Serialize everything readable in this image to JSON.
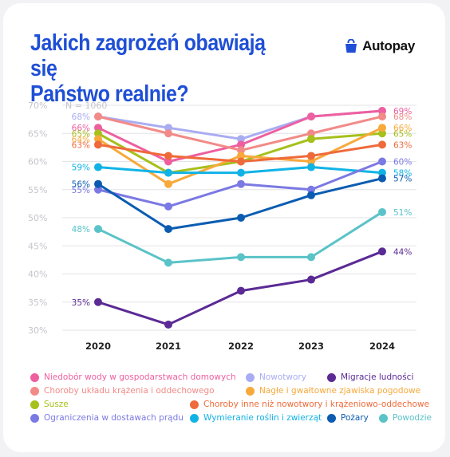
{
  "header": {
    "title_line1": "Jakich zagrożeń obawiają się",
    "title_line2": "Państwo realnie?",
    "brand": "Autopay",
    "brand_icon": "shopping-bag-icon"
  },
  "chart_data": {
    "type": "line",
    "title": "Jakich zagrożeń obawiają się Państwo realnie?",
    "annotation": "N = 1060",
    "x": [
      "2020",
      "2021",
      "2022",
      "2023",
      "2024"
    ],
    "ylim": [
      30,
      70
    ],
    "yticks": [
      "30%",
      "35%",
      "40%",
      "45%",
      "50%",
      "55%",
      "60%",
      "65%",
      "70%"
    ],
    "grid": true,
    "legend_position": "bottom",
    "series": [
      {
        "name": "Nowotwory",
        "color": "#a9acf2",
        "values": [
          68,
          66,
          64,
          68,
          69
        ],
        "label_start": "68%",
        "label_end": ""
      },
      {
        "name": "Niedobór wody w gospodarstwach domowych",
        "color": "#ee5fa0",
        "values": [
          66,
          60,
          63,
          68,
          69
        ],
        "label_start": "66%",
        "label_end": "69%"
      },
      {
        "name": "Choroby układu krążenia i oddechowego",
        "color": "#f28a88",
        "values": [
          68,
          65,
          62,
          65,
          68
        ],
        "label_start": "",
        "label_end": "68%"
      },
      {
        "name": "Susze",
        "color": "#a6c01c",
        "values": [
          65,
          58,
          60,
          64,
          65
        ],
        "label_start": "65%",
        "label_end": "65%"
      },
      {
        "name": "Nagłe i gwałtowne zjawiska pogodowe",
        "color": "#f7a93b",
        "values": [
          64,
          56,
          61,
          60,
          66
        ],
        "label_start": "64%",
        "label_end": "66%"
      },
      {
        "name": "Choroby inne niż nowotwory i krążeniowo-oddechowe",
        "color": "#ef6a3a",
        "values": [
          63,
          61,
          60,
          61,
          63
        ],
        "label_start": "63%",
        "label_end": "63%"
      },
      {
        "name": "Wymieranie roślin i zwierząt",
        "color": "#11b3e6",
        "values": [
          59,
          58,
          58,
          59,
          58
        ],
        "label_start": "59%",
        "label_end": "58%"
      },
      {
        "name": "Ograniczenia w dostawach prądu",
        "color": "#7b79e3",
        "values": [
          55,
          52,
          56,
          55,
          60
        ],
        "label_start": "55%",
        "label_end": "60%"
      },
      {
        "name": "Pożary",
        "color": "#0b5cb1",
        "values": [
          56,
          48,
          50,
          54,
          57
        ],
        "label_start": "56%",
        "label_end": "57%"
      },
      {
        "name": "Powodzie",
        "color": "#5ac3c8",
        "values": [
          48,
          42,
          43,
          43,
          51
        ],
        "label_start": "48%",
        "label_end": "51%"
      },
      {
        "name": "Migracje ludności",
        "color": "#5b2a95",
        "values": [
          35,
          31,
          37,
          39,
          44
        ],
        "label_start": "35%",
        "label_end": "44%"
      }
    ]
  },
  "legend": [
    {
      "name": "Niedobór wody w gospodarstwach domowych",
      "color": "#ee5fa0"
    },
    {
      "name": "Nowotwory",
      "color": "#a9acf2"
    },
    {
      "name": "Migracje ludności",
      "color": "#5b2a95"
    },
    {
      "name": "Choroby układu krążenia i oddechowego",
      "color": "#f28a88"
    },
    {
      "name": "Nagłe i gwałtowne zjawiska pogodowe",
      "color": "#f7a93b"
    },
    {
      "name": "Susze",
      "color": "#a6c01c"
    },
    {
      "name": "Choroby inne niż nowotwory i krążeniowo-oddechowe",
      "color": "#ef6a3a"
    },
    {
      "name": "Ograniczenia w dostawach prądu",
      "color": "#7b79e3"
    },
    {
      "name": "Wymieranie roślin i zwierząt",
      "color": "#11b3e6"
    },
    {
      "name": "Pożary",
      "color": "#0b5cb1"
    },
    {
      "name": "Powodzie",
      "color": "#5ac3c8"
    }
  ]
}
